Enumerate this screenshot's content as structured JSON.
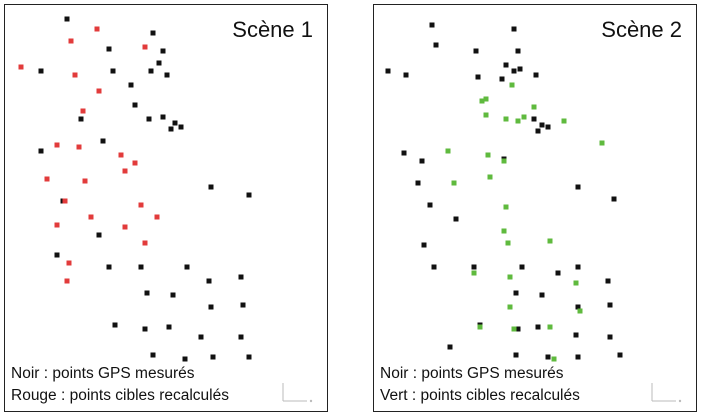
{
  "panels": [
    {
      "title": "Scène 1",
      "legend": [
        "Noir : points GPS mesurés",
        "Rouge : points cibles recalculés"
      ],
      "colors": {
        "measured": "#111111",
        "computed": "#e23b3b"
      },
      "points": {
        "measured": [
          [
            62,
            14
          ],
          [
            148,
            28
          ],
          [
            104,
            44
          ],
          [
            158,
            46
          ],
          [
            36,
            66
          ],
          [
            146,
            66
          ],
          [
            154,
            58
          ],
          [
            108,
            66
          ],
          [
            126,
            80
          ],
          [
            162,
            70
          ],
          [
            130,
            100
          ],
          [
            144,
            114
          ],
          [
            158,
            112
          ],
          [
            170,
            118
          ],
          [
            176,
            122
          ],
          [
            166,
            124
          ],
          [
            76,
            114
          ],
          [
            98,
            136
          ],
          [
            36,
            146
          ],
          [
            206,
            182
          ],
          [
            244,
            190
          ],
          [
            58,
            196
          ],
          [
            94,
            230
          ],
          [
            52,
            250
          ],
          [
            104,
            262
          ],
          [
            136,
            262
          ],
          [
            182,
            262
          ],
          [
            204,
            276
          ],
          [
            236,
            272
          ],
          [
            142,
            288
          ],
          [
            168,
            290
          ],
          [
            206,
            302
          ],
          [
            238,
            300
          ],
          [
            110,
            320
          ],
          [
            140,
            324
          ],
          [
            164,
            322
          ],
          [
            196,
            332
          ],
          [
            236,
            332
          ],
          [
            148,
            350
          ],
          [
            180,
            354
          ],
          [
            208,
            352
          ],
          [
            244,
            352
          ]
        ],
        "computed": [
          [
            66,
            36
          ],
          [
            92,
            24
          ],
          [
            16,
            62
          ],
          [
            70,
            70
          ],
          [
            94,
            86
          ],
          [
            140,
            42
          ],
          [
            78,
            106
          ],
          [
            52,
            140
          ],
          [
            74,
            142
          ],
          [
            116,
            150
          ],
          [
            80,
            176
          ],
          [
            120,
            166
          ],
          [
            130,
            158
          ],
          [
            42,
            174
          ],
          [
            60,
            196
          ],
          [
            86,
            212
          ],
          [
            136,
            200
          ],
          [
            52,
            220
          ],
          [
            140,
            238
          ],
          [
            64,
            258
          ],
          [
            62,
            276
          ],
          [
            120,
            222
          ],
          [
            152,
            212
          ]
        ]
      }
    },
    {
      "title": "Scène 2",
      "legend": [
        "Noir : points GPS mesurés",
        "Vert : points cibles recalculés"
      ],
      "colors": {
        "measured": "#111111",
        "computed": "#5fba3e"
      },
      "points": {
        "measured": [
          [
            58,
            20
          ],
          [
            140,
            24
          ],
          [
            62,
            40
          ],
          [
            102,
            46
          ],
          [
            144,
            46
          ],
          [
            14,
            66
          ],
          [
            32,
            70
          ],
          [
            132,
            60
          ],
          [
            140,
            66
          ],
          [
            146,
            64
          ],
          [
            104,
            72
          ],
          [
            128,
            74
          ],
          [
            162,
            70
          ],
          [
            160,
            114
          ],
          [
            168,
            120
          ],
          [
            174,
            122
          ],
          [
            164,
            126
          ],
          [
            30,
            148
          ],
          [
            48,
            156
          ],
          [
            130,
            154
          ],
          [
            44,
            178
          ],
          [
            204,
            182
          ],
          [
            240,
            194
          ],
          [
            56,
            200
          ],
          [
            82,
            214
          ],
          [
            50,
            240
          ],
          [
            60,
            262
          ],
          [
            100,
            262
          ],
          [
            148,
            262
          ],
          [
            184,
            268
          ],
          [
            204,
            262
          ],
          [
            234,
            276
          ],
          [
            142,
            288
          ],
          [
            168,
            290
          ],
          [
            204,
            302
          ],
          [
            236,
            300
          ],
          [
            106,
            320
          ],
          [
            144,
            324
          ],
          [
            164,
            322
          ],
          [
            202,
            330
          ],
          [
            236,
            332
          ],
          [
            76,
            342
          ],
          [
            142,
            350
          ],
          [
            174,
            352
          ],
          [
            204,
            352
          ],
          [
            246,
            350
          ]
        ],
        "computed": [
          [
            138,
            80
          ],
          [
            112,
            94
          ],
          [
            112,
            110
          ],
          [
            132,
            114
          ],
          [
            144,
            116
          ],
          [
            160,
            102
          ],
          [
            150,
            112
          ],
          [
            108,
            96
          ],
          [
            190,
            116
          ],
          [
            228,
            138
          ],
          [
            74,
            146
          ],
          [
            114,
            150
          ],
          [
            130,
            156
          ],
          [
            116,
            172
          ],
          [
            80,
            178
          ],
          [
            132,
            202
          ],
          [
            130,
            226
          ],
          [
            134,
            238
          ],
          [
            176,
            236
          ],
          [
            136,
            272
          ],
          [
            100,
            268
          ],
          [
            136,
            302
          ],
          [
            106,
            322
          ],
          [
            140,
            324
          ],
          [
            176,
            322
          ],
          [
            206,
            306
          ],
          [
            180,
            354
          ],
          [
            202,
            278
          ]
        ]
      }
    }
  ]
}
